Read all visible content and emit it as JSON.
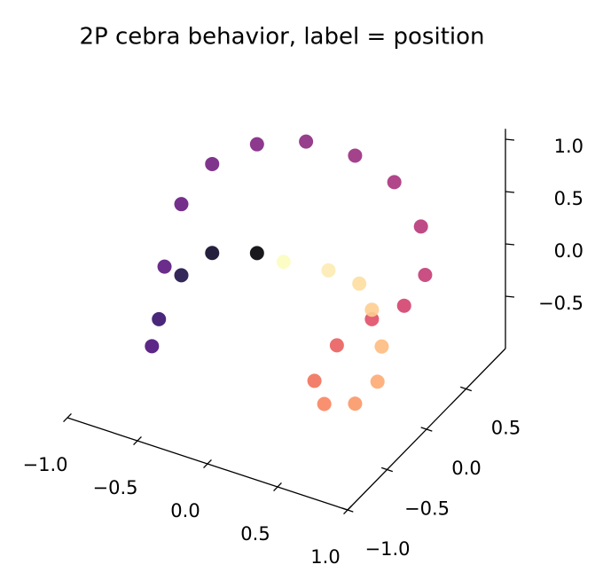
{
  "chart_data": {
    "type": "scatter3d",
    "title": "2P cebra behavior, label = position",
    "x": [
      -0.21,
      -0.53,
      -0.75,
      -0.91,
      -0.96,
      -0.87,
      -0.75,
      -0.53,
      -0.21,
      0.14,
      0.49,
      0.77,
      0.96,
      0.99,
      0.84,
      0.61,
      0.36,
      0.2,
      0.27,
      0.49,
      0.65,
      0.68,
      0.61,
      0.52,
      0.3,
      -0.02
    ],
    "y": [
      0,
      0,
      0,
      0,
      0,
      0,
      0,
      0,
      0,
      0,
      0,
      0,
      0,
      0,
      0,
      0,
      0,
      0,
      0,
      0,
      0,
      0,
      0,
      0,
      0,
      0
    ],
    "z": [
      0.15,
      0.01,
      -0.3,
      -0.79,
      -1.07,
      -0.27,
      0.38,
      0.86,
      1.19,
      1.37,
      1.39,
      1.26,
      0.92,
      0.47,
      0.11,
      -0.12,
      -0.48,
      -0.89,
      -1.08,
      -0.98,
      -0.7,
      -0.35,
      -0.03,
      0.18,
      0.21,
      0.15
    ],
    "colors": [
      "#000004",
      "#0d0829",
      "#1d1147",
      "#36106b",
      "#4a1079",
      "#5a167e",
      "#661a80",
      "#721f81",
      "#7f2482",
      "#8c2981",
      "#9a2d80",
      "#a8327d",
      "#b73779",
      "#c43c75",
      "#d3436e",
      "#e04f67",
      "#ea5f5f",
      "#f1715c",
      "#f8845f",
      "#fb9767",
      "#fdaa72",
      "#febb80",
      "#fecd90",
      "#fddea0",
      "#fcebb2",
      "#fcfdbf"
    ],
    "xlim": [
      -1.0,
      1.0
    ],
    "ylim": [
      -1.0,
      1.0
    ],
    "zlim": [
      -1.0,
      1.1
    ],
    "xticks": [
      {
        "value": -1.0,
        "label": "−1.0"
      },
      {
        "value": -0.5,
        "label": "−0.5"
      },
      {
        "value": 0.0,
        "label": "0.0"
      },
      0.5,
      {
        "value": 1.0,
        "label": "1.0"
      }
    ],
    "yticks": [
      {
        "value": -1.0,
        "label": "−1.0"
      },
      {
        "value": -0.5,
        "label": "−0.5"
      },
      {
        "value": 0.0,
        "label": "0.0"
      },
      0.5
    ],
    "zticks": [
      {
        "value": -0.5,
        "label": "−0.5"
      },
      {
        "value": 0.0,
        "label": "0.0"
      },
      0.5,
      {
        "value": 1.0,
        "label": "1.0"
      }
    ]
  }
}
